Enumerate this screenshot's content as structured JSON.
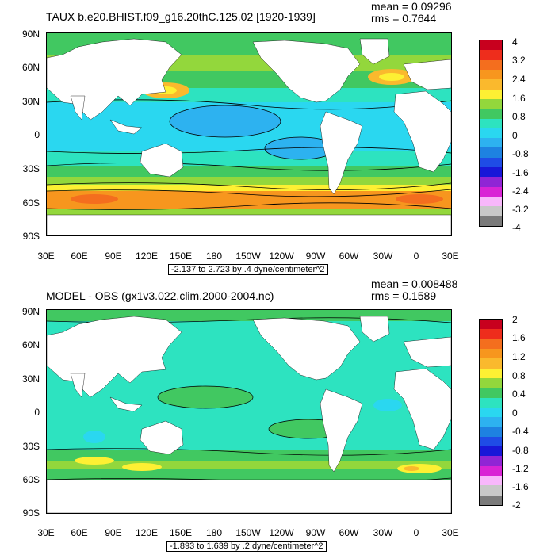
{
  "panels": [
    {
      "title": "TAUX b.e20.BHIST.f09_g16.20thC.125.02 [1920-1939]",
      "mean": "mean = 0.09296",
      "rms": "rms = 0.7644",
      "range_label": "-2.137 to 2.723 by .4 dyne/centimeter^2",
      "lat_labels": [
        "90N",
        "60N",
        "30N",
        "0",
        "30S",
        "60S",
        "90S"
      ],
      "lon_labels": [
        "30E",
        "60E",
        "90E",
        "120E",
        "150E",
        "180",
        "150W",
        "120W",
        "90W",
        "60W",
        "30W",
        "0",
        "30E"
      ],
      "colorbar_labels": [
        "4",
        "3.2",
        "2.4",
        "1.6",
        "0.8",
        "0",
        "-0.8",
        "-1.6",
        "-2.4",
        "-3.2",
        "-4"
      ],
      "colorbar_colors": [
        "#c8001e",
        "#ee2d1c",
        "#f46e1e",
        "#f7961e",
        "#fab92d",
        "#fdf033",
        "#93d73c",
        "#41c861",
        "#2de3c0",
        "#2ad7f0",
        "#2db2f0",
        "#1e82e1",
        "#1f4ce6",
        "#1817d8",
        "#9025d5",
        "#d924d5",
        "#f8b7fb",
        "#c8c8c8",
        "#7a7a7a"
      ]
    },
    {
      "title": "MODEL - OBS (gx1v3.022.clim.2000-2004.nc)",
      "mean": "mean = 0.008488",
      "rms": "rms = 0.1589",
      "range_label": "-1.893 to 1.639 by .2 dyne/centimeter^2",
      "lat_labels": [
        "90N",
        "60N",
        "30N",
        "0",
        "30S",
        "60S",
        "90S"
      ],
      "lon_labels": [
        "30E",
        "60E",
        "90E",
        "120E",
        "150E",
        "180",
        "150W",
        "120W",
        "90W",
        "60W",
        "30W",
        "0",
        "30E"
      ],
      "colorbar_labels": [
        "2",
        "1.6",
        "1.2",
        "0.8",
        "0.4",
        "0",
        "-0.4",
        "-0.8",
        "-1.2",
        "-1.6",
        "-2"
      ],
      "colorbar_colors": [
        "#c8001e",
        "#ee2d1c",
        "#f46e1e",
        "#f7961e",
        "#fab92d",
        "#fdf033",
        "#93d73c",
        "#41c861",
        "#2de3c0",
        "#2ad7f0",
        "#2db2f0",
        "#1e82e1",
        "#1f4ce6",
        "#1817d8",
        "#9025d5",
        "#d924d5",
        "#f8b7fb",
        "#c8c8c8",
        "#7a7a7a"
      ]
    }
  ],
  "colors": {
    "land": "#ffffff",
    "contour": "#000000"
  }
}
